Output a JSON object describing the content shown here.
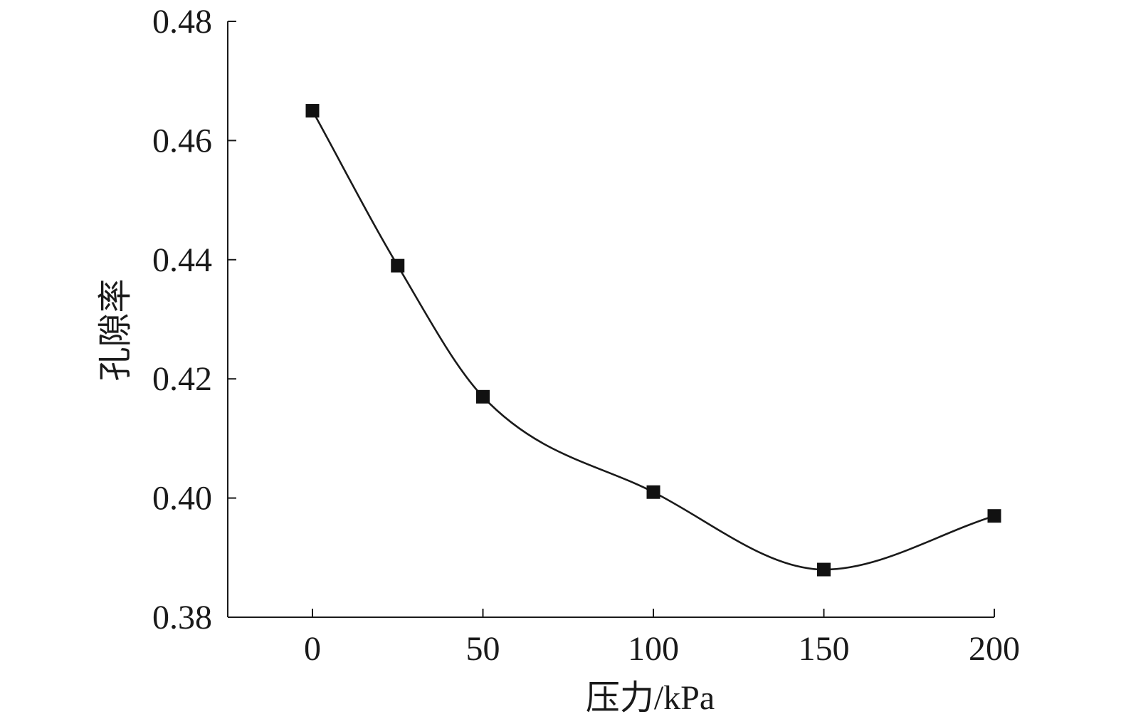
{
  "chart_data": {
    "type": "line",
    "title": "",
    "xlabel": "压力/kPa",
    "ylabel": "孔隙率",
    "xlim": [
      -25,
      200
    ],
    "ylim": [
      0.38,
      0.48
    ],
    "x_ticks": [
      0,
      50,
      100,
      150,
      200
    ],
    "y_ticks": [
      0.38,
      0.4,
      0.42,
      0.44,
      0.46,
      0.48
    ],
    "x_tick_labels": [
      "0",
      "50",
      "100",
      "150",
      "200"
    ],
    "y_tick_labels": [
      "0.38",
      "0.40",
      "0.42",
      "0.44",
      "0.46",
      "0.48"
    ],
    "grid": false,
    "legend": "none",
    "smoothed": true,
    "marker": "square",
    "series": [
      {
        "color": "#111111",
        "x": [
          0,
          25,
          50,
          100,
          150,
          200
        ],
        "y": [
          0.465,
          0.439,
          0.417,
          0.401,
          0.388,
          0.397
        ]
      }
    ]
  }
}
